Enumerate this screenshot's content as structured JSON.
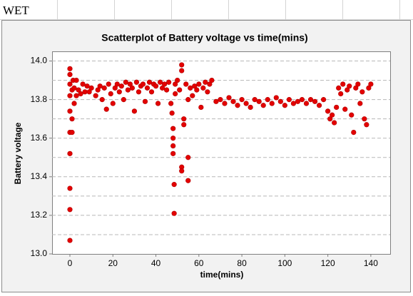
{
  "sheet": {
    "cell_a1": "WET"
  },
  "chart_data": {
    "type": "scatter",
    "title": "Scatterplot of Battery voltage vs time(mins)",
    "x_label": "time(mins)",
    "y_label": "Battery voltage",
    "color": "#e30000",
    "xlim": [
      -8.3,
      149
    ],
    "xticks": [
      0,
      20,
      40,
      60,
      80,
      100,
      120,
      140
    ],
    "ylim": [
      13.0,
      14.05
    ],
    "yticks": [
      {
        "value": 13.0,
        "label": "13.0"
      },
      13.2,
      13.4,
      13.6,
      13.8,
      {
        "value": 14.0,
        "label": "14.0"
      }
    ],
    "ygrid": [
      13.1,
      13.2,
      13.3,
      13.4,
      13.5,
      13.6,
      13.7,
      13.8,
      13.9,
      14.0
    ],
    "x": [
      0,
      0,
      0,
      0,
      0,
      0,
      0,
      0,
      0,
      0,
      1,
      1,
      1,
      1.5,
      2,
      2,
      3,
      3,
      4,
      5,
      6,
      7,
      8,
      9,
      10,
      12,
      13,
      14,
      15,
      16,
      17,
      18,
      19,
      20,
      21,
      22,
      23,
      24,
      25,
      26,
      27,
      28,
      29,
      30,
      31,
      32,
      33,
      34,
      35,
      36,
      37,
      38,
      39,
      40,
      41,
      42,
      43,
      44,
      45,
      46,
      47,
      47.5,
      48,
      48,
      48,
      48,
      48.5,
      48.5,
      49,
      49,
      50,
      51,
      52,
      52,
      52,
      52,
      53,
      53,
      54,
      55,
      55,
      55,
      56,
      57,
      58,
      59,
      60,
      61,
      62,
      63,
      64,
      65,
      66,
      68,
      70,
      72,
      74,
      76,
      78,
      80,
      82,
      84,
      86,
      88,
      90,
      92,
      94,
      96,
      98,
      100,
      102,
      104,
      106,
      108,
      110,
      112,
      114,
      116,
      118,
      120,
      121,
      122,
      123,
      124,
      125,
      126,
      127,
      128,
      129,
      130,
      131,
      132,
      133,
      134,
      135,
      136,
      137,
      138,
      139,
      140
    ],
    "values": [
      13.07,
      13.23,
      13.34,
      13.52,
      13.63,
      13.74,
      13.82,
      13.88,
      13.93,
      13.96,
      13.63,
      13.7,
      13.85,
      13.9,
      13.78,
      13.86,
      13.82,
      13.9,
      13.85,
      13.83,
      13.88,
      13.84,
      13.87,
      13.84,
      13.86,
      13.82,
      13.85,
      13.87,
      13.8,
      13.86,
      13.75,
      13.88,
      13.83,
      13.78,
      13.86,
      13.88,
      13.84,
      13.87,
      13.8,
      13.89,
      13.85,
      13.88,
      13.86,
      13.74,
      13.89,
      13.84,
      13.87,
      13.88,
      13.79,
      13.86,
      13.89,
      13.84,
      13.88,
      13.87,
      13.78,
      13.89,
      13.86,
      13.88,
      13.85,
      13.89,
      13.78,
      13.73,
      13.65,
      13.6,
      13.56,
      13.52,
      13.36,
      13.21,
      13.83,
      13.88,
      13.9,
      13.85,
      13.98,
      13.95,
      13.45,
      13.43,
      13.7,
      13.67,
      13.88,
      13.5,
      13.38,
      13.8,
      13.86,
      13.82,
      13.87,
      13.85,
      13.88,
      13.76,
      13.86,
      13.89,
      13.84,
      13.88,
      13.9,
      13.79,
      13.8,
      13.78,
      13.81,
      13.79,
      13.77,
      13.8,
      13.78,
      13.76,
      13.8,
      13.79,
      13.77,
      13.8,
      13.78,
      13.81,
      13.79,
      13.77,
      13.8,
      13.78,
      13.79,
      13.8,
      13.78,
      13.8,
      13.79,
      13.77,
      13.8,
      13.74,
      13.7,
      13.72,
      13.68,
      13.76,
      13.86,
      13.83,
      13.88,
      13.75,
      13.85,
      13.87,
      13.72,
      13.63,
      13.86,
      13.88,
      13.78,
      13.84,
      13.7,
      13.67,
      13.86,
      13.88
    ]
  }
}
